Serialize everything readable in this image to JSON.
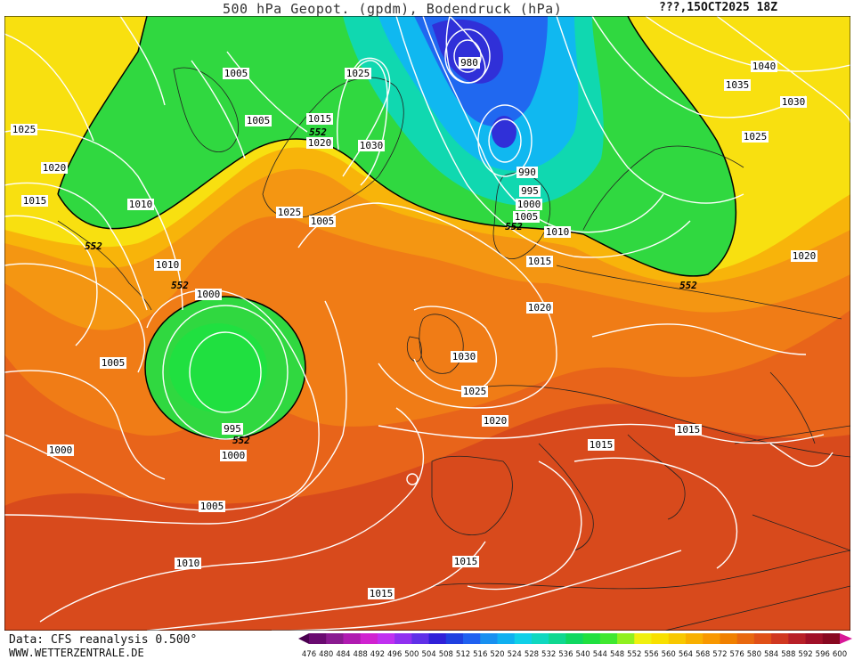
{
  "header": {
    "title": "500 hPa Geopot. (gpdm), Bodendruck (hPa)",
    "date": "???,15OCT2025 18Z"
  },
  "footer": {
    "source": "Data: CFS reanalysis 0.500°",
    "website": "WWW.WETTERZENTRALE.DE"
  },
  "legend": {
    "ticks": [
      "476",
      "480",
      "484",
      "488",
      "492",
      "496",
      "500",
      "504",
      "508",
      "512",
      "516",
      "520",
      "524",
      "528",
      "532",
      "536",
      "540",
      "544",
      "548",
      "552",
      "556",
      "560",
      "564",
      "568",
      "572",
      "576",
      "580",
      "584",
      "588",
      "592",
      "596",
      "600"
    ],
    "colors": [
      "#4a0050",
      "#6a0a70",
      "#8a1a90",
      "#b01ab0",
      "#d022d0",
      "#c030f0",
      "#9030f0",
      "#6030e8",
      "#3020d8",
      "#2040e0",
      "#2060f0",
      "#1890f0",
      "#10b0f0",
      "#10d0e8",
      "#10d8c0",
      "#10d890",
      "#10d860",
      "#20e040",
      "#40e830",
      "#90f020",
      "#f0f010",
      "#f8e000",
      "#f8c800",
      "#f8b000",
      "#f89800",
      "#f08000",
      "#e86810",
      "#e05018",
      "#d03820",
      "#b82028",
      "#a01028",
      "#880820",
      "#d81898"
    ]
  },
  "isobar_labels": [
    "1025",
    "1020",
    "1015",
    "1010",
    "1005",
    "1005",
    "1005",
    "1025",
    "1015",
    "552",
    "1020",
    "1030",
    "980",
    "990",
    "995",
    "1000",
    "1005",
    "552",
    "1010",
    "1015",
    "1040",
    "1035",
    "1030",
    "1025",
    "1020",
    "552",
    "1025",
    "1010",
    "552",
    "1000",
    "552",
    "1005",
    "1030",
    "1025",
    "1020",
    "1000",
    "995",
    "552",
    "1000",
    "1005",
    "1015",
    "1020",
    "1015",
    "1010",
    "1015",
    "1015"
  ]
}
